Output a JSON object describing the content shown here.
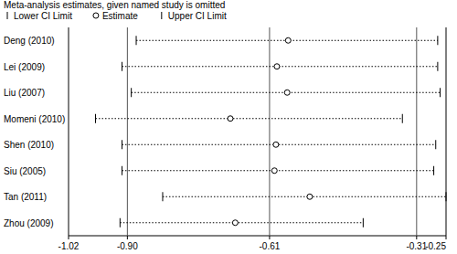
{
  "chart_data": {
    "type": "forest",
    "title": "Meta-analysis estimates, given named study is omitted",
    "categories": [
      "Deng (2010)",
      "Lei (2009)",
      "Liu (2007)",
      "Momeni (2010)",
      "Shen (2010)",
      "Siu (2005)",
      "Tan (2011)",
      "Zhou (2009)"
    ],
    "series": [
      {
        "name": "Lower CI Limit",
        "marker": "bar",
        "color": "#000000",
        "values": [
          -0.882,
          -0.911,
          -0.892,
          -0.965,
          -0.911,
          -0.911,
          -0.828,
          -0.915
        ]
      },
      {
        "name": "Estimate",
        "marker": "circle",
        "color": "#000000",
        "values": [
          -0.572,
          -0.595,
          -0.574,
          -0.69,
          -0.597,
          -0.6,
          -0.528,
          -0.68
        ]
      },
      {
        "name": "Upper CI Limit",
        "marker": "bar",
        "color": "#000000",
        "values": [
          -0.267,
          -0.267,
          -0.262,
          -0.339,
          -0.271,
          -0.275,
          -0.25,
          -0.419
        ]
      }
    ],
    "overall": {
      "lower": -0.9,
      "estimate": -0.61,
      "upper": -0.31
    },
    "line_style": "dotted",
    "xlim": [
      -1.02,
      -0.25
    ],
    "xticks": [
      -1.02,
      {
        "value": -0.9,
        "label": "-0.90"
      },
      -0.61,
      -0.31,
      -0.25
    ]
  }
}
